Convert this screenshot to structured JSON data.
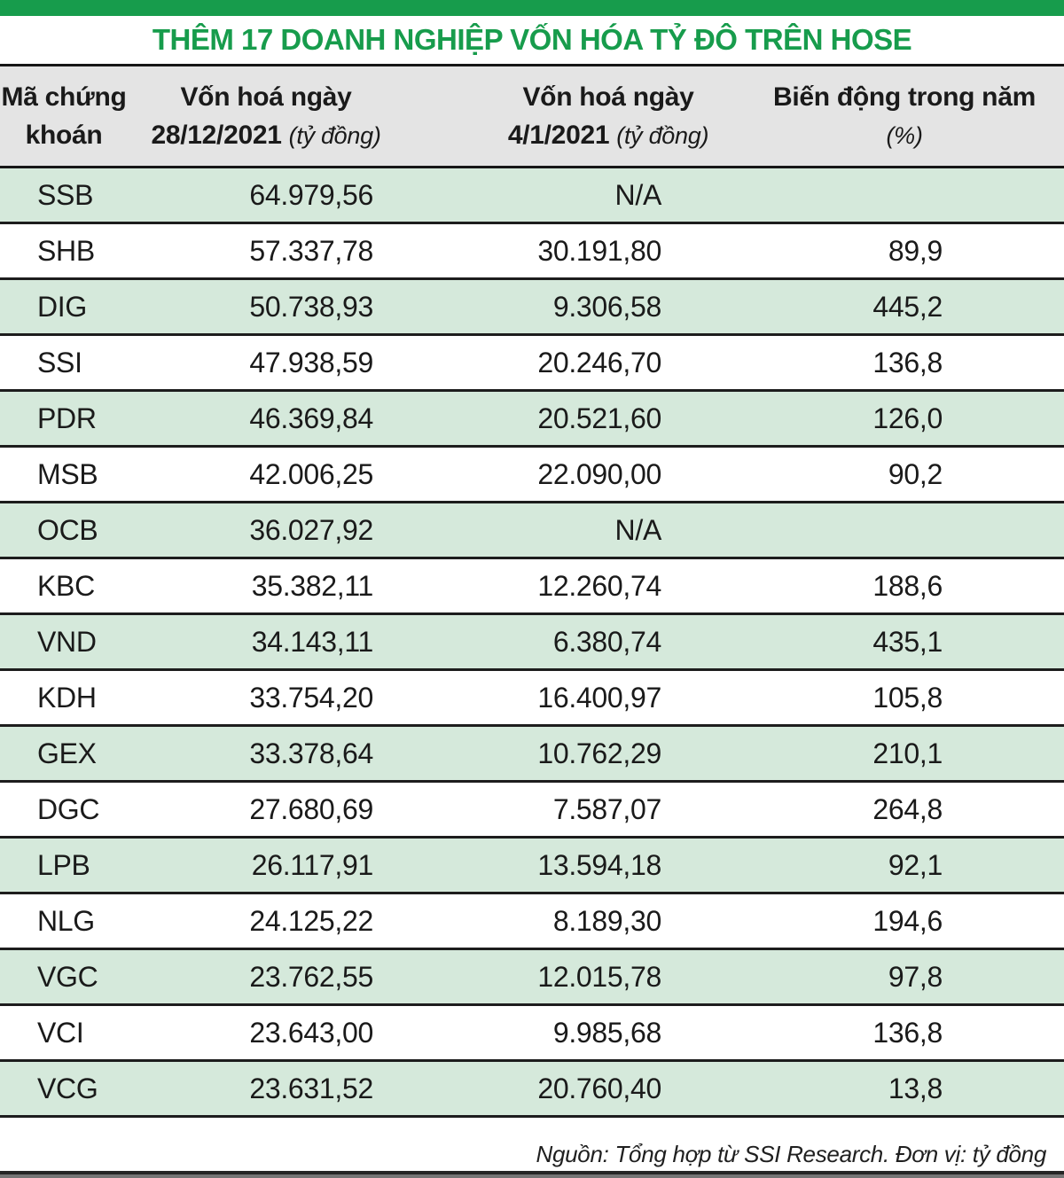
{
  "colors": {
    "accent_green": "#179c4c",
    "row_green": "#d5e9db",
    "header_grey": "#e4e4e4",
    "line_dark": "#1d1d1d"
  },
  "title": "THÊM 17 DOANH NGHIỆP VỐN HÓA TỶ ĐÔ TRÊN HOSE",
  "footer": {
    "source_note": "Nguồn: Tổng hợp từ SSI Research. Đơn vị: tỷ đồng"
  },
  "chart_data": {
    "type": "table",
    "title": "THÊM 17 DOANH NGHIỆP VỐN HÓA TỶ ĐÔ TRÊN HOSE",
    "columns": [
      {
        "id": "code",
        "lines": [
          "Mã chứng",
          "khoán"
        ]
      },
      {
        "id": "cap_dec",
        "line1": "Vốn hoá ngày",
        "line2_bold": "28/12/2021",
        "line2_italic": "(tỷ đồng)"
      },
      {
        "id": "cap_jan",
        "line1": "Vốn hoá ngày",
        "line2_bold": "4/1/2021",
        "line2_italic": "(tỷ đồng)"
      },
      {
        "id": "change",
        "lines": [
          "Biến động trong năm",
          "(%)"
        ]
      }
    ],
    "rows": [
      {
        "code": "SSB",
        "cap_dec": "64.979,56",
        "cap_jan": "N/A",
        "change": ""
      },
      {
        "code": "SHB",
        "cap_dec": "57.337,78",
        "cap_jan": "30.191,80",
        "change": "89,9"
      },
      {
        "code": "DIG",
        "cap_dec": "50.738,93",
        "cap_jan": "9.306,58",
        "change": "445,2"
      },
      {
        "code": "SSI",
        "cap_dec": "47.938,59",
        "cap_jan": "20.246,70",
        "change": "136,8"
      },
      {
        "code": "PDR",
        "cap_dec": "46.369,84",
        "cap_jan": "20.521,60",
        "change": "126,0"
      },
      {
        "code": "MSB",
        "cap_dec": "42.006,25",
        "cap_jan": "22.090,00",
        "change": "90,2"
      },
      {
        "code": "OCB",
        "cap_dec": "36.027,92",
        "cap_jan": "N/A",
        "change": ""
      },
      {
        "code": "KBC",
        "cap_dec": "35.382,11",
        "cap_jan": "12.260,74",
        "change": "188,6"
      },
      {
        "code": "VND",
        "cap_dec": "34.143,11",
        "cap_jan": "6.380,74",
        "change": "435,1"
      },
      {
        "code": "KDH",
        "cap_dec": "33.754,20",
        "cap_jan": "16.400,97",
        "change": "105,8"
      },
      {
        "code": "GEX",
        "cap_dec": "33.378,64",
        "cap_jan": "10.762,29",
        "change": "210,1"
      },
      {
        "code": "DGC",
        "cap_dec": "27.680,69",
        "cap_jan": "7.587,07",
        "change": "264,8"
      },
      {
        "code": "LPB",
        "cap_dec": "26.117,91",
        "cap_jan": "13.594,18",
        "change": "92,1"
      },
      {
        "code": "NLG",
        "cap_dec": "24.125,22",
        "cap_jan": "8.189,30",
        "change": "194,6"
      },
      {
        "code": "VGC",
        "cap_dec": "23.762,55",
        "cap_jan": "12.015,78",
        "change": "97,8"
      },
      {
        "code": "VCI",
        "cap_dec": "23.643,00",
        "cap_jan": "9.985,68",
        "change": "136,8"
      },
      {
        "code": "VCG",
        "cap_dec": "23.631,52",
        "cap_jan": "20.760,40",
        "change": "13,8"
      }
    ]
  }
}
